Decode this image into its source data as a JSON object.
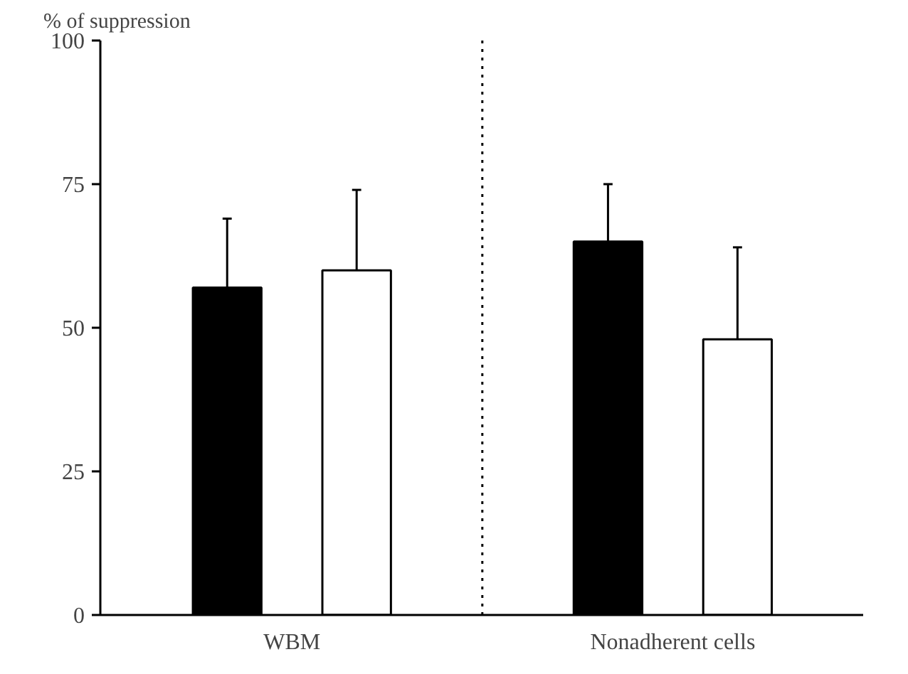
{
  "chart_data": {
    "type": "bar",
    "ylabel": "% of suppression",
    "categories": [
      "WBM",
      "Nonadherent cells"
    ],
    "series": [
      {
        "color": "#000000",
        "values": [
          57,
          65
        ],
        "errors": [
          [
            57,
            69
          ],
          [
            65,
            75
          ]
        ]
      },
      {
        "color": "#ffffff",
        "values": [
          60,
          48
        ],
        "errors": [
          [
            60,
            74
          ],
          [
            48,
            64
          ]
        ]
      }
    ],
    "ylim": [
      0,
      100
    ],
    "yticks": [
      0,
      25,
      50,
      75,
      100
    ],
    "grid": false
  }
}
